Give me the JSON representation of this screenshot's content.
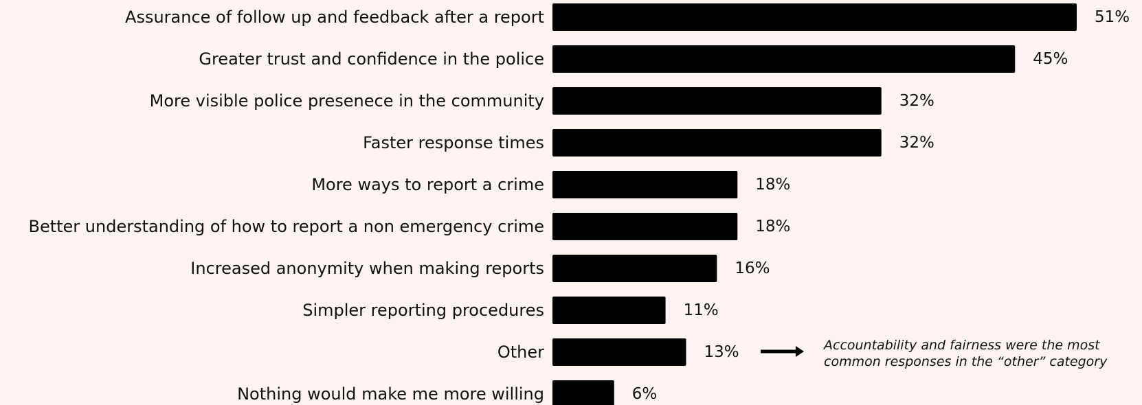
{
  "chart_data": {
    "type": "bar",
    "orientation": "horizontal",
    "categories": [
      "Assurance of follow up and feedback after a report",
      "Greater trust and confidence in the police",
      "More visible police presenece in the community",
      "Faster response times",
      "More ways to report a crime",
      "Better understanding of how to report a non emergency crime",
      "Increased anonymity when making reports",
      "Simpler reporting procedures",
      "Other",
      "Nothing would make me more willing"
    ],
    "values": [
      51,
      45,
      32,
      32,
      18,
      18,
      16,
      11,
      13,
      6
    ],
    "value_labels": [
      "51%",
      "45%",
      "32%",
      "32%",
      "18%",
      "18%",
      "16%",
      "11%",
      "13%",
      "6%"
    ],
    "bar_color": "#000000",
    "background_color": "#fcf4f0",
    "title": "",
    "xlabel": "",
    "ylabel": "",
    "xlim": [
      0,
      51
    ],
    "grid": false,
    "annotation": {
      "target_category": "Other",
      "arrow": "right-arrow-icon",
      "lines": [
        "Accountability and fairness were the most",
        "common responses in the “other” category"
      ]
    }
  }
}
